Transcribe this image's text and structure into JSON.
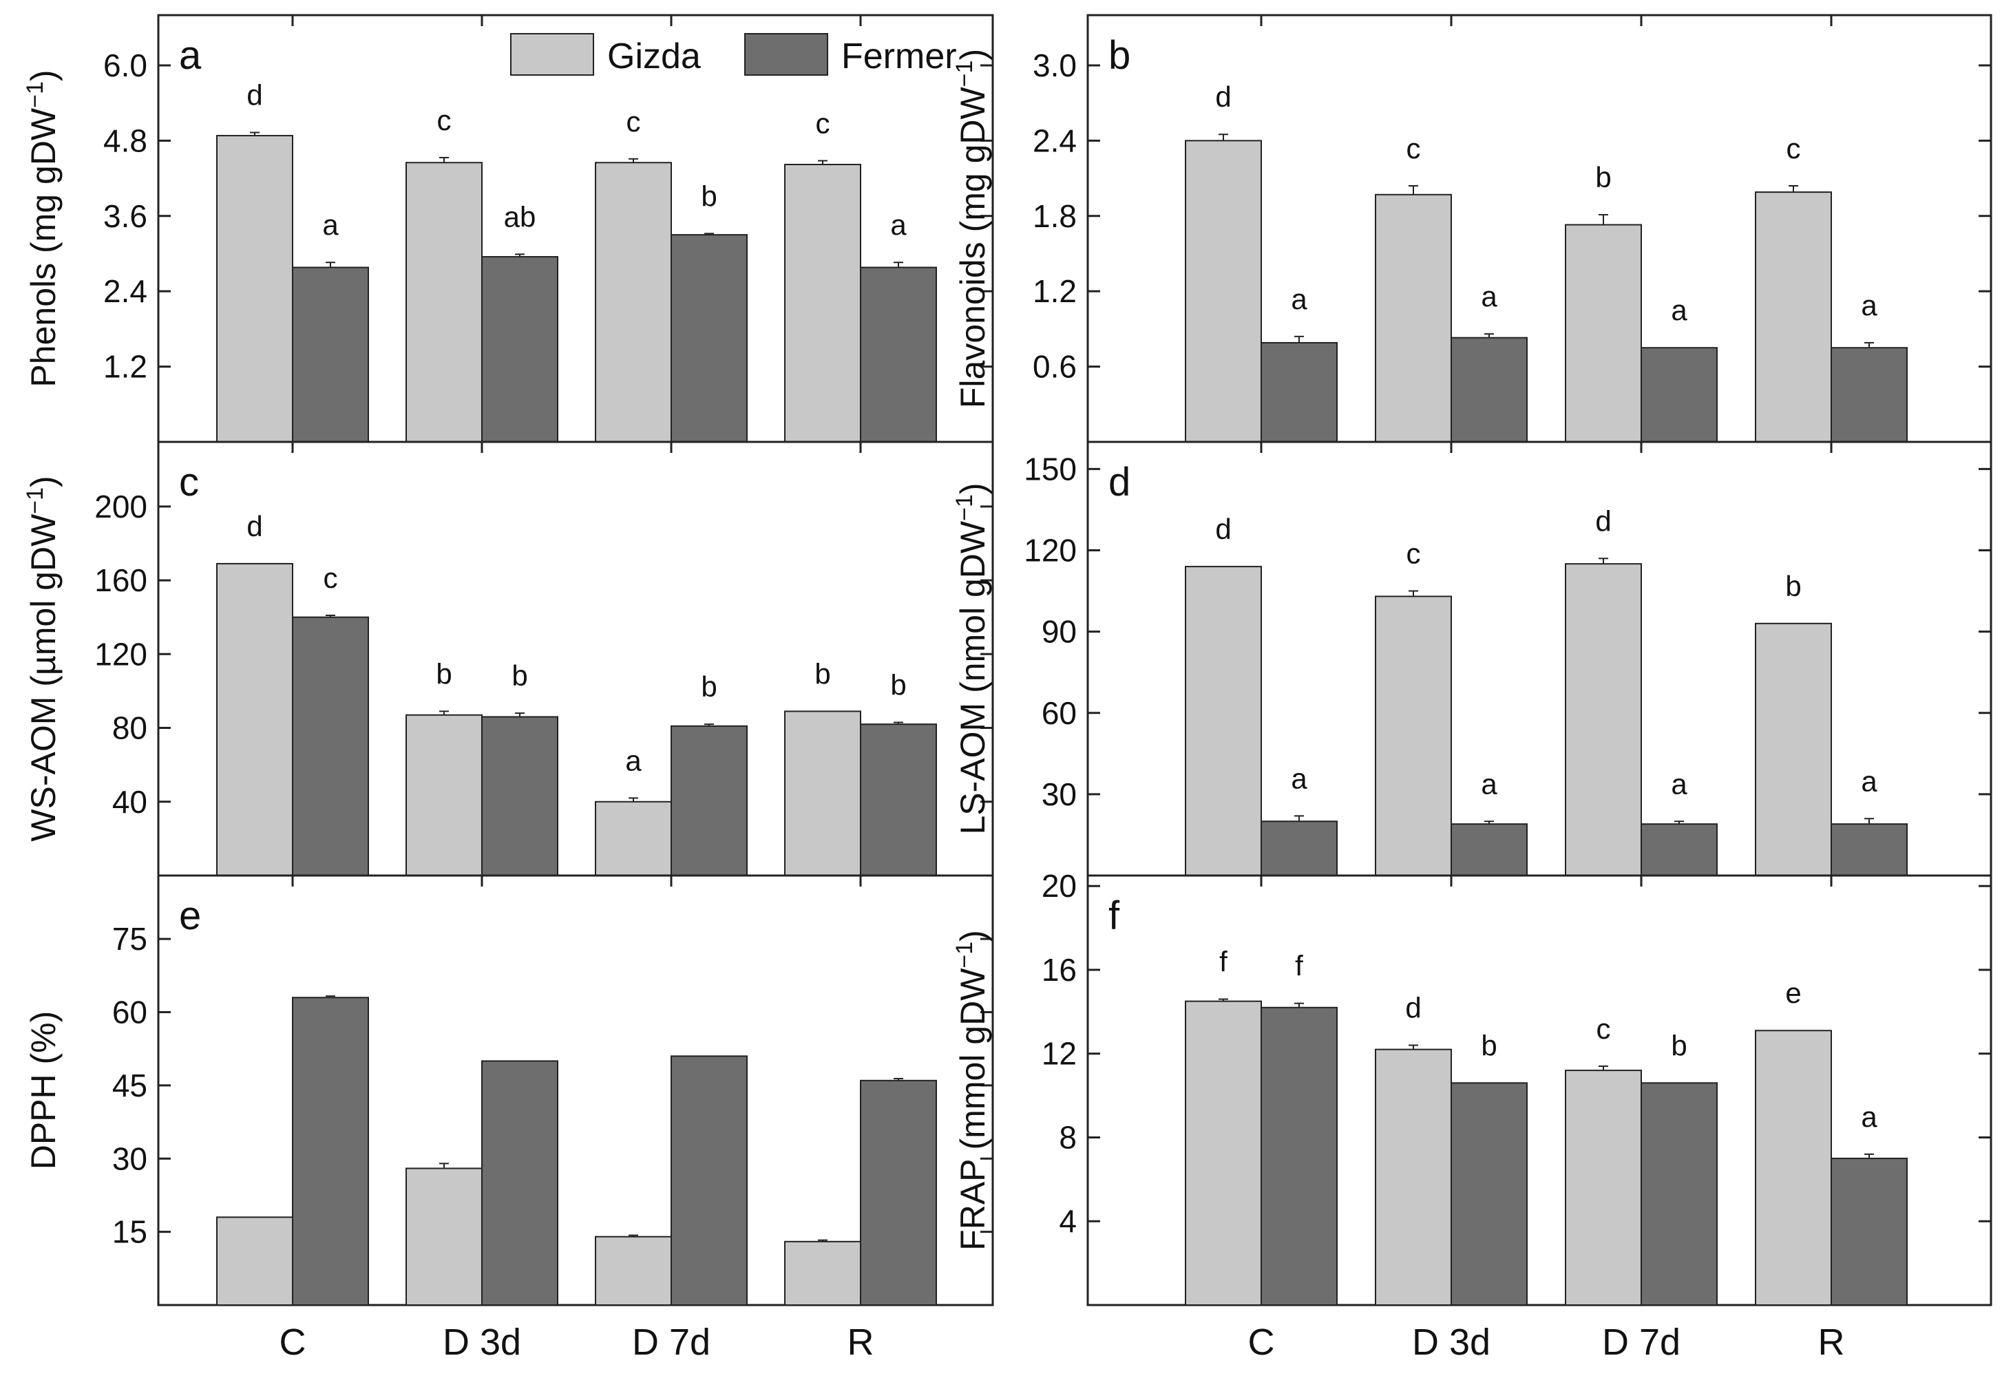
{
  "legend": {
    "series": [
      {
        "name": "Gizda",
        "color": "#c8c8c8"
      },
      {
        "name": "Fermer",
        "color": "#6e6e6e"
      }
    ]
  },
  "chart_data": [
    {
      "panel": "a",
      "type": "bar",
      "ylabel": "Phenols (mg gDW",
      "ylabel_sup": "−1",
      "ylabel_tail": ")",
      "ylim": [
        0,
        6.8
      ],
      "yticks": [
        1.2,
        2.4,
        3.6,
        4.8,
        6.0
      ],
      "ytick_labels": [
        "1.2",
        "2.4",
        "3.6",
        "4.8",
        "6.0"
      ],
      "categories": [
        "C",
        "D 3d",
        "D 7d",
        "R"
      ],
      "series": [
        {
          "name": "Gizda",
          "values": [
            4.88,
            4.45,
            4.45,
            4.42
          ],
          "errors": [
            0.05,
            0.08,
            0.06,
            0.06
          ],
          "letters": [
            "d",
            "c",
            "c",
            "c"
          ]
        },
        {
          "name": "Fermer",
          "values": [
            2.78,
            2.95,
            3.3,
            2.78
          ],
          "errors": [
            0.08,
            0.04,
            0.02,
            0.08
          ],
          "letters": [
            "a",
            "ab",
            "b",
            "a"
          ]
        }
      ]
    },
    {
      "panel": "b",
      "type": "bar",
      "ylabel": "Flavonoids (mg gDW",
      "ylabel_sup": "−1",
      "ylabel_tail": ")",
      "ylim": [
        0,
        3.4
      ],
      "yticks": [
        0.6,
        1.2,
        1.8,
        2.4,
        3.0
      ],
      "ytick_labels": [
        "0.6",
        "1.2",
        "1.8",
        "2.4",
        "3.0"
      ],
      "categories": [
        "C",
        "D 3d",
        "D 7d",
        "R"
      ],
      "series": [
        {
          "name": "Gizda",
          "values": [
            2.4,
            1.97,
            1.73,
            1.99
          ],
          "errors": [
            0.05,
            0.07,
            0.08,
            0.05
          ],
          "letters": [
            "d",
            "c",
            "b",
            "c"
          ]
        },
        {
          "name": "Fermer",
          "values": [
            0.79,
            0.83,
            0.75,
            0.75
          ],
          "errors": [
            0.05,
            0.03,
            0.0,
            0.04
          ],
          "letters": [
            "a",
            "a",
            "a",
            "a"
          ]
        }
      ]
    },
    {
      "panel": "c",
      "type": "bar",
      "ylabel": "WS-AOM (µmol gDW",
      "ylabel_sup": "−1",
      "ylabel_tail": ")",
      "ylim": [
        0,
        235
      ],
      "yticks": [
        40,
        80,
        120,
        160,
        200
      ],
      "ytick_labels": [
        "40",
        "80",
        "120",
        "160",
        "200"
      ],
      "categories": [
        "C",
        "D 3d",
        "D 7d",
        "R"
      ],
      "series": [
        {
          "name": "Gizda",
          "values": [
            169,
            87,
            40,
            89
          ],
          "errors": [
            0,
            2,
            2,
            0
          ],
          "letters": [
            "d",
            "b",
            "a",
            "b"
          ]
        },
        {
          "name": "Fermer",
          "values": [
            140,
            86,
            81,
            82
          ],
          "errors": [
            1,
            2,
            1,
            1
          ],
          "letters": [
            "c",
            "b",
            "b",
            "b"
          ]
        }
      ]
    },
    {
      "panel": "d",
      "type": "bar",
      "ylabel": "LS-AOM (nmol gDW",
      "ylabel_sup": "−1",
      "ylabel_tail": ")",
      "ylim": [
        0,
        160
      ],
      "yticks": [
        30,
        60,
        90,
        120,
        150
      ],
      "ytick_labels": [
        "30",
        "60",
        "90",
        "120",
        "150"
      ],
      "categories": [
        "C",
        "D 3d",
        "D 7d",
        "R"
      ],
      "series": [
        {
          "name": "Gizda",
          "values": [
            114,
            103,
            115,
            93
          ],
          "errors": [
            0,
            2,
            2,
            0
          ],
          "letters": [
            "d",
            "c",
            "d",
            "b"
          ]
        },
        {
          "name": "Fermer",
          "values": [
            20,
            19,
            19,
            19
          ],
          "errors": [
            2,
            1,
            1,
            2
          ],
          "letters": [
            "a",
            "a",
            "a",
            "a"
          ]
        }
      ]
    },
    {
      "panel": "e",
      "type": "bar",
      "ylabel": "DPPH (%)",
      "ylabel_sup": "",
      "ylabel_tail": "",
      "ylim": [
        0,
        88
      ],
      "yticks": [
        15,
        30,
        45,
        60,
        75
      ],
      "ytick_labels": [
        "15",
        "30",
        "45",
        "60",
        "75"
      ],
      "categories": [
        "C",
        "D 3d",
        "D 7d",
        "R"
      ],
      "series": [
        {
          "name": "Gizda",
          "values": [
            18,
            28,
            14,
            13
          ],
          "errors": [
            0,
            1,
            0.3,
            0.3
          ],
          "letters": [
            "",
            "",
            "",
            ""
          ]
        },
        {
          "name": "Fermer",
          "values": [
            63,
            50,
            51,
            46
          ],
          "errors": [
            0.3,
            0,
            0,
            0.4
          ],
          "letters": [
            "",
            "",
            "",
            ""
          ]
        }
      ]
    },
    {
      "panel": "f",
      "type": "bar",
      "ylabel": "FRAP (mmol gDW",
      "ylabel_sup": "−1",
      "ylabel_tail": ")",
      "ylim": [
        0,
        20.5
      ],
      "yticks": [
        4,
        8,
        12,
        16,
        20
      ],
      "ytick_labels": [
        "4",
        "8",
        "12",
        "16",
        "20"
      ],
      "categories": [
        "C",
        "D 3d",
        "D 7d",
        "R"
      ],
      "series": [
        {
          "name": "Gizda",
          "values": [
            14.5,
            12.2,
            11.2,
            13.1
          ],
          "errors": [
            0.1,
            0.2,
            0.2,
            0
          ],
          "letters": [
            "f",
            "d",
            "c",
            "e"
          ]
        },
        {
          "name": "Fermer",
          "values": [
            14.2,
            10.6,
            10.6,
            7.0
          ],
          "errors": [
            0.2,
            0,
            0,
            0.2
          ],
          "letters": [
            "f",
            "b",
            "b",
            "a"
          ]
        }
      ]
    }
  ]
}
